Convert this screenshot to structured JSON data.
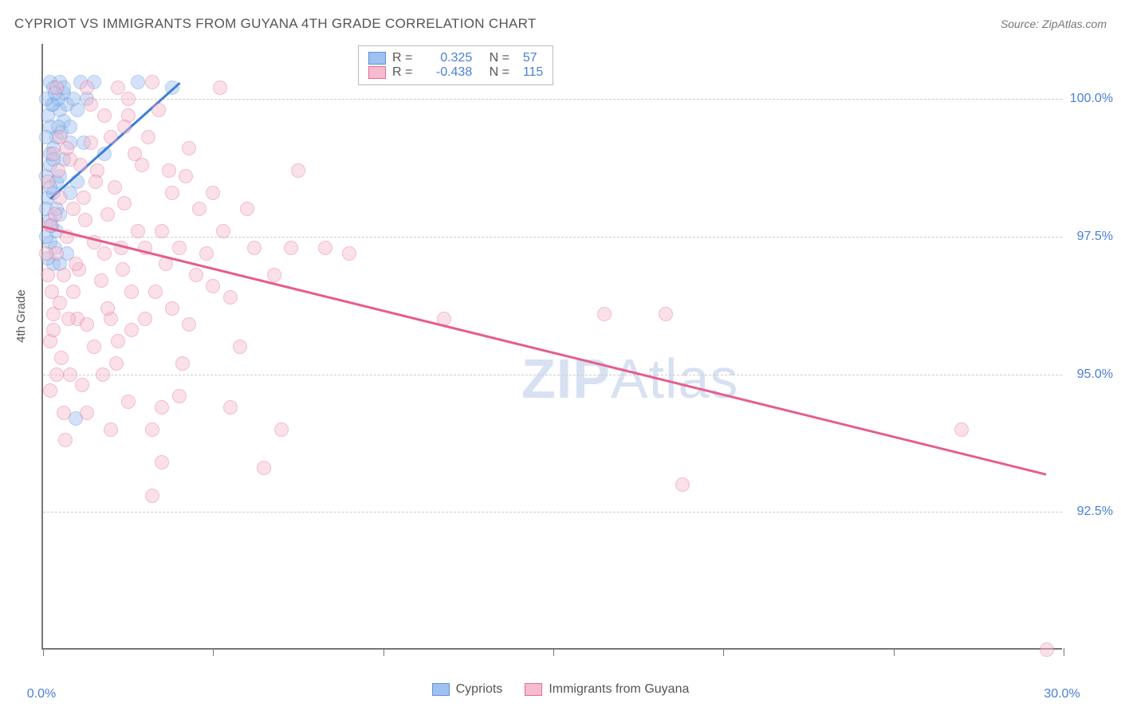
{
  "header": {
    "title": "CYPRIOT VS IMMIGRANTS FROM GUYANA 4TH GRADE CORRELATION CHART",
    "source": "Source: ZipAtlas.com"
  },
  "chart": {
    "type": "scatter",
    "y_axis_label": "4th Grade",
    "xlim": [
      0,
      30
    ],
    "ylim": [
      90,
      101
    ],
    "x_ticks": [
      0,
      5,
      10,
      15,
      20,
      25,
      30
    ],
    "x_tick_labels_shown": {
      "0": "0.0%",
      "30": "30.0%"
    },
    "y_gridlines": [
      92.5,
      95.0,
      97.5,
      100.0
    ],
    "y_tick_labels": [
      "92.5%",
      "95.0%",
      "97.5%",
      "100.0%"
    ],
    "background_color": "#ffffff",
    "grid_color": "#cccccc",
    "axis_color": "#777777",
    "tick_label_color": "#4a7fd8",
    "marker_radius": 9,
    "marker_opacity": 0.45,
    "series": [
      {
        "name": "Cypriots",
        "color_fill": "#9ec1f0",
        "color_stroke": "#5b93db",
        "R": 0.325,
        "N": 57,
        "trend": {
          "x1": 0.2,
          "y1": 98.2,
          "x2": 4.0,
          "y2": 100.3,
          "color": "#3d7fd6",
          "width": 2.5
        },
        "points": [
          [
            0.2,
            100.3
          ],
          [
            0.3,
            100.2
          ],
          [
            0.5,
            100.3
          ],
          [
            0.6,
            100.1
          ],
          [
            1.1,
            100.3
          ],
          [
            1.5,
            100.3
          ],
          [
            2.8,
            100.3
          ],
          [
            3.8,
            100.2
          ],
          [
            0.3,
            99.9
          ],
          [
            0.5,
            99.8
          ],
          [
            0.7,
            99.9
          ],
          [
            1.0,
            99.8
          ],
          [
            1.3,
            100.0
          ],
          [
            0.2,
            99.5
          ],
          [
            0.4,
            99.3
          ],
          [
            0.6,
            99.6
          ],
          [
            0.3,
            99.1
          ],
          [
            0.8,
            99.2
          ],
          [
            1.2,
            99.2
          ],
          [
            0.1,
            98.6
          ],
          [
            0.2,
            98.8
          ],
          [
            0.4,
            98.5
          ],
          [
            0.15,
            98.2
          ],
          [
            0.3,
            98.3
          ],
          [
            0.2,
            97.8
          ],
          [
            0.5,
            97.9
          ],
          [
            0.2,
            97.4
          ],
          [
            0.35,
            97.3
          ],
          [
            1.8,
            99.0
          ],
          [
            0.15,
            99.7
          ],
          [
            0.45,
            100.0
          ],
          [
            0.9,
            100.0
          ],
          [
            0.1,
            98.0
          ],
          [
            0.6,
            98.9
          ],
          [
            0.8,
            98.3
          ],
          [
            0.25,
            99.9
          ],
          [
            0.4,
            98.0
          ],
          [
            0.55,
            99.4
          ],
          [
            0.1,
            97.5
          ],
          [
            0.95,
            94.2
          ],
          [
            0.3,
            97.0
          ],
          [
            1.0,
            98.5
          ],
          [
            0.2,
            99.0
          ],
          [
            0.7,
            97.2
          ],
          [
            0.4,
            97.6
          ],
          [
            0.15,
            97.1
          ],
          [
            0.5,
            98.6
          ],
          [
            0.3,
            98.9
          ],
          [
            0.6,
            100.2
          ],
          [
            0.1,
            100.0
          ],
          [
            0.8,
            99.5
          ],
          [
            0.2,
            98.4
          ],
          [
            0.45,
            99.5
          ],
          [
            0.1,
            99.3
          ],
          [
            0.35,
            100.1
          ],
          [
            0.25,
            97.7
          ],
          [
            0.5,
            97.0
          ]
        ]
      },
      {
        "name": "Immigrants from Guyana",
        "color_fill": "#f5bcd0",
        "color_stroke": "#e86a98",
        "R": -0.438,
        "N": 115,
        "trend": {
          "x1": 0.0,
          "y1": 97.7,
          "x2": 29.5,
          "y2": 93.2,
          "color": "#e65c8f",
          "width": 2.5
        },
        "points": [
          [
            0.4,
            100.2
          ],
          [
            1.3,
            100.2
          ],
          [
            2.2,
            100.2
          ],
          [
            2.5,
            100.0
          ],
          [
            3.2,
            100.3
          ],
          [
            5.2,
            100.2
          ],
          [
            1.8,
            99.7
          ],
          [
            2.5,
            99.7
          ],
          [
            3.4,
            99.8
          ],
          [
            0.5,
            99.3
          ],
          [
            1.4,
            99.2
          ],
          [
            2.0,
            99.3
          ],
          [
            2.7,
            99.0
          ],
          [
            4.3,
            99.1
          ],
          [
            1.1,
            98.8
          ],
          [
            1.6,
            98.7
          ],
          [
            3.7,
            98.7
          ],
          [
            4.2,
            98.6
          ],
          [
            7.5,
            98.7
          ],
          [
            0.2,
            97.7
          ],
          [
            0.5,
            98.2
          ],
          [
            1.2,
            98.2
          ],
          [
            2.4,
            98.1
          ],
          [
            0.7,
            97.5
          ],
          [
            1.5,
            97.4
          ],
          [
            2.8,
            97.6
          ],
          [
            3.5,
            97.6
          ],
          [
            5.3,
            97.6
          ],
          [
            0.4,
            97.2
          ],
          [
            1.8,
            97.2
          ],
          [
            2.3,
            97.3
          ],
          [
            3.0,
            97.3
          ],
          [
            4.0,
            97.3
          ],
          [
            4.8,
            97.2
          ],
          [
            6.2,
            97.3
          ],
          [
            7.3,
            97.3
          ],
          [
            8.3,
            97.3
          ],
          [
            9.0,
            97.2
          ],
          [
            0.6,
            96.8
          ],
          [
            0.9,
            96.5
          ],
          [
            1.7,
            96.7
          ],
          [
            2.6,
            96.5
          ],
          [
            3.3,
            96.5
          ],
          [
            5.5,
            96.4
          ],
          [
            0.3,
            96.1
          ],
          [
            1.0,
            96.0
          ],
          [
            1.3,
            95.9
          ],
          [
            2.0,
            96.0
          ],
          [
            3.0,
            96.0
          ],
          [
            4.3,
            95.9
          ],
          [
            11.8,
            96.0
          ],
          [
            16.5,
            96.1
          ],
          [
            18.3,
            96.1
          ],
          [
            0.2,
            95.6
          ],
          [
            1.5,
            95.5
          ],
          [
            2.2,
            95.6
          ],
          [
            5.8,
            95.5
          ],
          [
            0.4,
            95.0
          ],
          [
            0.8,
            95.0
          ],
          [
            2.5,
            94.5
          ],
          [
            3.5,
            94.4
          ],
          [
            4.0,
            94.6
          ],
          [
            5.5,
            94.4
          ],
          [
            0.6,
            94.3
          ],
          [
            2.0,
            94.0
          ],
          [
            3.2,
            94.0
          ],
          [
            7.0,
            94.0
          ],
          [
            27.0,
            94.0
          ],
          [
            3.5,
            93.4
          ],
          [
            6.5,
            93.3
          ],
          [
            18.8,
            93.0
          ],
          [
            3.2,
            92.8
          ],
          [
            29.5,
            90.0
          ],
          [
            0.9,
            98.0
          ],
          [
            1.25,
            97.8
          ],
          [
            2.1,
            98.4
          ],
          [
            3.8,
            98.3
          ],
          [
            4.6,
            98.0
          ],
          [
            0.3,
            99.0
          ],
          [
            0.8,
            98.9
          ],
          [
            2.4,
            99.5
          ],
          [
            5.0,
            98.3
          ],
          [
            6.0,
            98.0
          ],
          [
            0.5,
            96.3
          ],
          [
            1.9,
            96.2
          ],
          [
            4.5,
            96.8
          ],
          [
            3.8,
            96.2
          ],
          [
            2.9,
            98.8
          ],
          [
            0.15,
            98.5
          ],
          [
            0.7,
            99.1
          ],
          [
            1.4,
            99.9
          ],
          [
            1.05,
            96.9
          ],
          [
            2.15,
            95.2
          ],
          [
            0.35,
            97.9
          ],
          [
            1.55,
            98.5
          ],
          [
            0.25,
            96.5
          ],
          [
            3.1,
            99.3
          ],
          [
            0.45,
            98.7
          ],
          [
            0.95,
            97.0
          ],
          [
            1.75,
            95.0
          ],
          [
            0.1,
            97.2
          ],
          [
            2.35,
            96.9
          ],
          [
            0.55,
            95.3
          ],
          [
            1.15,
            94.8
          ],
          [
            0.75,
            96.0
          ],
          [
            1.3,
            94.3
          ],
          [
            0.2,
            94.7
          ],
          [
            0.65,
            93.8
          ],
          [
            2.6,
            95.8
          ],
          [
            4.1,
            95.2
          ],
          [
            0.3,
            95.8
          ],
          [
            1.9,
            97.9
          ],
          [
            3.6,
            97.0
          ],
          [
            5.0,
            96.6
          ],
          [
            6.8,
            96.8
          ],
          [
            0.15,
            96.8
          ]
        ]
      }
    ],
    "legend_stats": [
      {
        "swatch_fill": "#9ec1f0",
        "swatch_stroke": "#5b93db",
        "r_label": "R =",
        "r_value": "0.325",
        "n_label": "N =",
        "n_value": "57",
        "value_color": "#4a7fd8",
        "text_color": "#555"
      },
      {
        "swatch_fill": "#f5bcd0",
        "swatch_stroke": "#e86a98",
        "r_label": "R =",
        "r_value": "-0.438",
        "n_label": "N =",
        "n_value": "115",
        "value_color": "#4a7fd8",
        "text_color": "#555"
      }
    ],
    "bottom_legend": [
      {
        "swatch_fill": "#9ec1f0",
        "swatch_stroke": "#5b93db",
        "label": "Cypriots"
      },
      {
        "swatch_fill": "#f5bcd0",
        "swatch_stroke": "#e86a98",
        "label": "Immigrants from Guyana"
      }
    ],
    "watermark": {
      "text1": "ZIP",
      "text2": "Atlas",
      "color": "#b8c9e8"
    }
  }
}
